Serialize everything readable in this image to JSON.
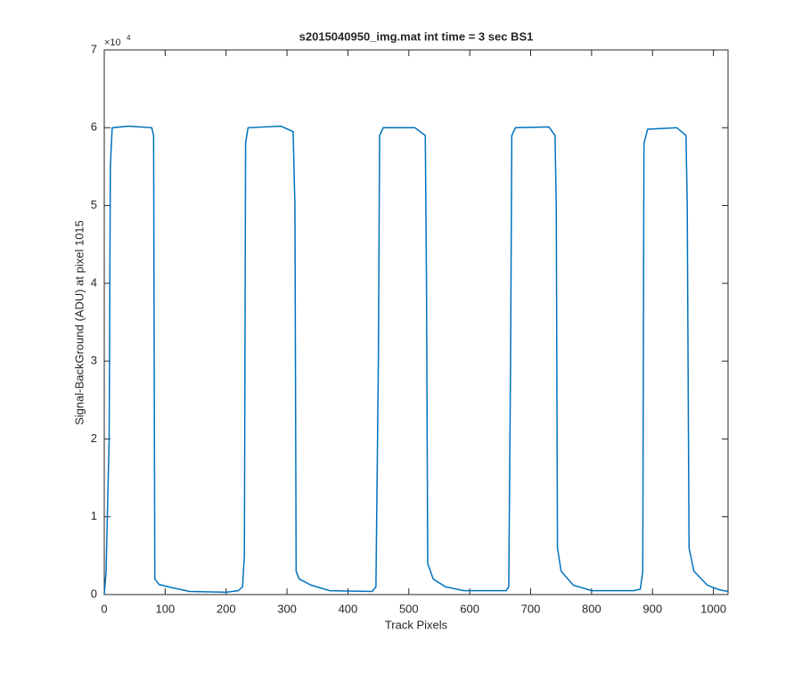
{
  "chart_data": {
    "type": "line",
    "title": "s2015040950_img.mat int time = 3 sec   BS1",
    "xlabel": "Track Pixels",
    "ylabel": "Signal-BackGround (ADU) at pixel 1015",
    "y_exponent_base": "×10",
    "y_exponent": "4",
    "xlim": [
      0,
      1024
    ],
    "ylim": [
      0,
      70000
    ],
    "xticks": [
      0,
      100,
      200,
      300,
      400,
      500,
      600,
      700,
      800,
      900,
      1000
    ],
    "yticks": [
      0,
      {
        "value": 10000,
        "label": "1"
      },
      {
        "value": 20000,
        "label": "2"
      },
      {
        "value": 30000,
        "label": "3"
      },
      {
        "value": 40000,
        "label": "4"
      },
      {
        "value": 50000,
        "label": "5"
      },
      {
        "value": 60000,
        "label": "6"
      },
      {
        "value": 70000,
        "label": "7"
      }
    ],
    "grid": false,
    "series": [
      {
        "color": "#0072bd",
        "x": [
          0,
          3,
          8,
          10,
          13,
          40,
          78,
          81,
          82,
          83,
          90,
          110,
          140,
          200,
          220,
          227,
          230,
          232,
          236,
          290,
          310,
          313,
          315,
          320,
          340,
          370,
          440,
          446,
          450,
          452,
          458,
          510,
          527,
          529,
          531,
          540,
          560,
          590,
          660,
          664,
          667,
          669,
          675,
          730,
          740,
          742,
          744,
          750,
          770,
          800,
          870,
          880,
          884,
          886,
          892,
          940,
          955,
          957,
          960,
          968,
          990,
          1010,
          1024
        ],
        "values": [
          0,
          3000,
          20000,
          55000,
          60000,
          60200,
          60000,
          59000,
          30000,
          2000,
          1300,
          900,
          400,
          300,
          500,
          1000,
          5000,
          58000,
          60000,
          60200,
          59500,
          50000,
          3000,
          2000,
          1200,
          500,
          400,
          1000,
          30000,
          59000,
          60000,
          60000,
          59000,
          40000,
          4000,
          2000,
          1000,
          500,
          500,
          1000,
          30000,
          59000,
          60000,
          60100,
          59000,
          50000,
          6000,
          3000,
          1200,
          500,
          500,
          700,
          3000,
          58000,
          59800,
          60000,
          59000,
          50000,
          6000,
          3000,
          1200,
          600,
          400
        ]
      }
    ]
  }
}
